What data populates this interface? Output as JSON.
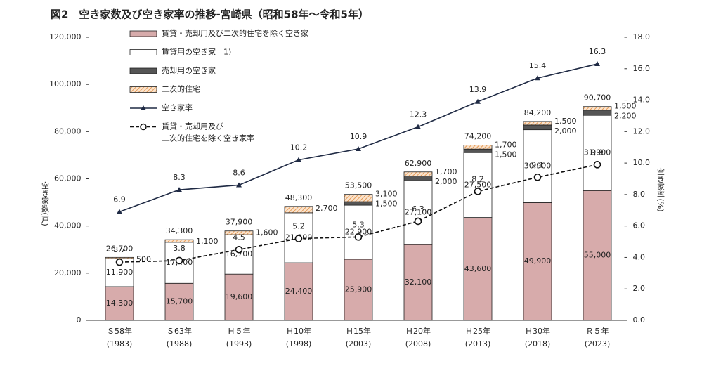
{
  "chart_data": {
    "type": "bar",
    "title": "図2　空き家数及び空き家率の推移-宮崎県（昭和58年～令和5年）",
    "y_label": "空き家数(戸)",
    "y2_label": "空き家率(%)",
    "categories": [
      [
        "Ｓ58年",
        "(1983)"
      ],
      [
        "Ｓ63年",
        "(1988)"
      ],
      [
        "Ｈ５年",
        "(1993)"
      ],
      [
        "Ｈ10年",
        "(1998)"
      ],
      [
        "Ｈ15年",
        "(2003)"
      ],
      [
        "Ｈ20年",
        "(2008)"
      ],
      [
        "Ｈ25年",
        "(2013)"
      ],
      [
        "Ｈ30年",
        "(2018)"
      ],
      [
        "Ｒ５年",
        "(2023)"
      ]
    ],
    "series": [
      {
        "name": "賃貸・売却用及び二次的住宅を除く空き家",
        "type": "bar",
        "color": "#d7abab",
        "values": [
          14300,
          15700,
          19600,
          24400,
          25900,
          32100,
          43600,
          49900,
          55000
        ],
        "value_labels": [
          "14,300",
          "15,700",
          "19,600",
          "24,400",
          "25,900",
          "32,100",
          "43,600",
          "49,900",
          "55,000"
        ]
      },
      {
        "name": "賃貸用の空き家　1)",
        "type": "bar",
        "color": "#ffffff",
        "values": [
          11900,
          17400,
          16700,
          21200,
          22900,
          27100,
          27500,
          30900,
          31900
        ],
        "value_labels": [
          "11,900",
          "17,400",
          "16,700",
          "21,200",
          "22,900",
          "27,100",
          "27,500",
          "30,900",
          "31,900"
        ]
      },
      {
        "name": "売却用の空き家",
        "type": "bar",
        "color": "#555555",
        "values": [
          null,
          null,
          null,
          null,
          1500,
          2000,
          1500,
          2000,
          2200
        ],
        "value_labels": [
          null,
          null,
          null,
          null,
          "1,500",
          "2,000",
          "1,500",
          "2,000",
          "2,200"
        ]
      },
      {
        "name": "二次的住宅",
        "type": "bar",
        "color": "#f3c79c",
        "hatch": true,
        "values": [
          500,
          1100,
          1600,
          2700,
          3100,
          1700,
          1700,
          1500,
          1500
        ],
        "value_labels": [
          "500",
          "1,100",
          "1,600",
          "2,700",
          "3,100",
          "1,700",
          "1,700",
          "1,500",
          "1,500"
        ]
      },
      {
        "name": "空き家率",
        "type": "line",
        "axis": "y2",
        "color": "#1f2a44",
        "marker": "triangle",
        "values": [
          6.9,
          8.3,
          8.6,
          10.2,
          10.9,
          12.3,
          13.9,
          15.4,
          16.3
        ]
      },
      {
        "name": [
          "賃貸・売却用及び",
          "二次的住宅を除く空き家率"
        ],
        "type": "line",
        "axis": "y2",
        "color": "#111111",
        "marker": "circle",
        "dashed": true,
        "values": [
          3.7,
          3.8,
          4.5,
          5.2,
          5.3,
          6.3,
          8.2,
          9.1,
          9.9
        ]
      }
    ],
    "totals": [
      26700,
      34300,
      37900,
      48300,
      53500,
      62900,
      74200,
      84200,
      90700
    ],
    "total_labels": [
      "26,700",
      "34,300",
      "37,900",
      "48,300",
      "53,500",
      "62,900",
      "74,200",
      "84,200",
      "90,700"
    ],
    "ylim": [
      0,
      120000
    ],
    "yticks": [
      0,
      {
        "value": 20000,
        "label": "20,000"
      },
      {
        "value": 40000,
        "label": "40,000"
      },
      {
        "value": 60000,
        "label": "60,000"
      },
      {
        "value": 80000,
        "label": "80,000"
      },
      {
        "value": 100000,
        "label": "100,000"
      },
      {
        "value": 120000,
        "label": "120,000"
      }
    ],
    "y2lim": [
      0,
      18
    ],
    "y2ticks": [
      {
        "value": 0,
        "label": "0.0"
      },
      {
        "value": 2,
        "label": "2.0"
      },
      {
        "value": 4,
        "label": "4.0"
      },
      {
        "value": 6,
        "label": "6.0"
      },
      {
        "value": 8,
        "label": "8.0"
      },
      {
        "value": 10,
        "label": "10.0"
      },
      {
        "value": 12,
        "label": "12.0"
      },
      {
        "value": 14,
        "label": "14.0"
      },
      {
        "value": 16,
        "label": "16.0"
      },
      {
        "value": 18,
        "label": "18.0"
      }
    ]
  }
}
